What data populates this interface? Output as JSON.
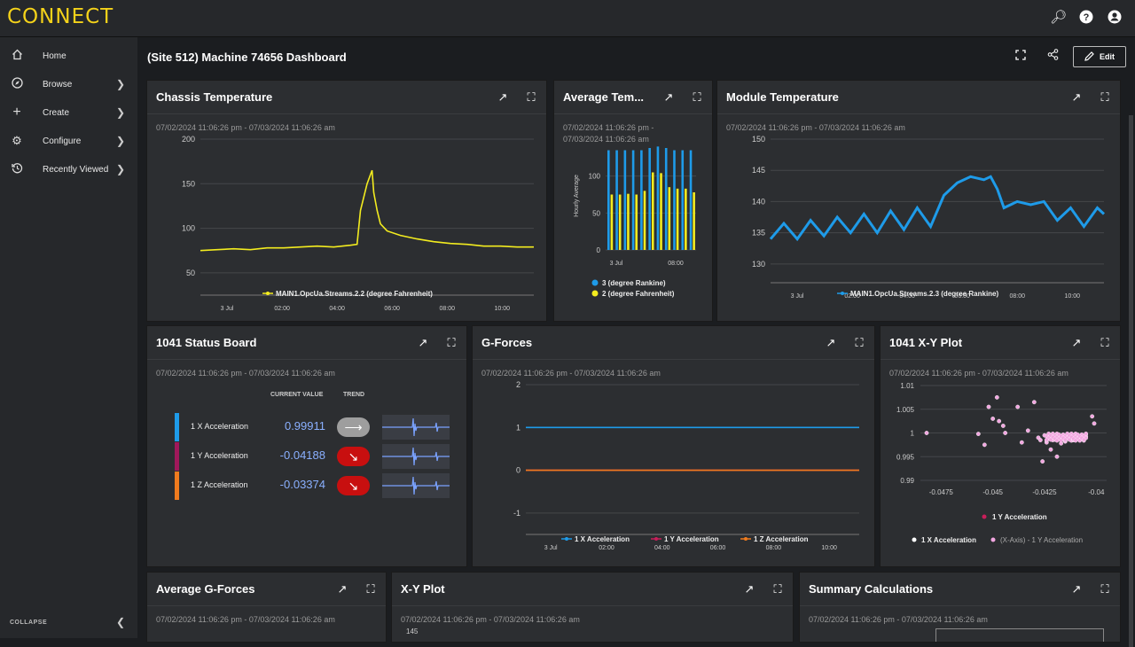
{
  "app": {
    "logo": "CONNECT"
  },
  "sidebar": {
    "items": [
      {
        "label": "Home",
        "icon": "home-icon"
      },
      {
        "label": "Browse",
        "icon": "compass-icon"
      },
      {
        "label": "Create",
        "icon": "plus-icon"
      },
      {
        "label": "Configure",
        "icon": "gear-icon"
      },
      {
        "label": "Recently Viewed",
        "icon": "history-icon"
      }
    ],
    "collapse_label": "COLLAPSE"
  },
  "header": {
    "title": "(Site 512) Machine 74656 Dashboard",
    "edit_label": "Edit"
  },
  "range": "07/02/2024 11:06:26 pm - 07/03/2024 11:06:26 am",
  "range_split": [
    "07/02/2024 11:06:26 pm -",
    "07/03/2024 11:06:26 am"
  ],
  "cards": {
    "chassis": {
      "title": "Chassis Temperature"
    },
    "avgtemp": {
      "title": "Average Tem..."
    },
    "module": {
      "title": "Module Temperature"
    },
    "status": {
      "title": "1041 Status Board",
      "col_value": "CURRENT VALUE",
      "col_trend": "TREND"
    },
    "gforces": {
      "title": "G-Forces"
    },
    "xy1041": {
      "title": "1041 X-Y Plot"
    },
    "avg_gforces": {
      "title": "Average G-Forces"
    },
    "xyplot": {
      "title": "X-Y Plot"
    },
    "summary": {
      "title": "Summary Calculations"
    }
  },
  "status_rows": [
    {
      "label": "1 X Acceleration",
      "value": "0.99911",
      "color": "#1e9be9",
      "trend": "flat",
      "trend_color": "#9e9e9e"
    },
    {
      "label": "1 Y Acceleration",
      "value": "-0.04188",
      "color": "#a0185a",
      "trend": "down",
      "trend_color": "#c80f0f"
    },
    {
      "label": "1 Z Acceleration",
      "value": "-0.03374",
      "color": "#f07b1e",
      "trend": "down",
      "trend_color": "#c80f0f"
    }
  ],
  "xyplot_partial_tick": "145",
  "chart_data": [
    {
      "id": "chassis",
      "type": "line",
      "y_ticks": [
        50,
        100,
        150,
        200
      ],
      "ylim": [
        25,
        200
      ],
      "x_ticks": [
        "3 Jul",
        "02:00",
        "04:00",
        "06:00",
        "08:00",
        "10:00"
      ],
      "series": [
        {
          "name": "MAIN1.OpcUa.Streams.2.2 (degree Fahrenheit)",
          "color": "#f3ec1f",
          "points": [
            [
              0,
              75
            ],
            [
              0.05,
              76
            ],
            [
              0.1,
              77
            ],
            [
              0.15,
              76
            ],
            [
              0.2,
              78
            ],
            [
              0.25,
              78
            ],
            [
              0.3,
              79
            ],
            [
              0.35,
              80
            ],
            [
              0.4,
              79
            ],
            [
              0.45,
              81
            ],
            [
              0.47,
              82
            ],
            [
              0.48,
              120
            ],
            [
              0.5,
              150
            ],
            [
              0.515,
              165
            ],
            [
              0.52,
              140
            ],
            [
              0.53,
              120
            ],
            [
              0.54,
              105
            ],
            [
              0.56,
              97
            ],
            [
              0.6,
              92
            ],
            [
              0.65,
              88
            ],
            [
              0.7,
              85
            ],
            [
              0.75,
              83
            ],
            [
              0.8,
              82
            ],
            [
              0.85,
              80
            ],
            [
              0.9,
              80
            ],
            [
              0.95,
              79
            ],
            [
              1,
              79
            ]
          ]
        }
      ]
    },
    {
      "id": "avgtemp",
      "type": "bar",
      "ylabel": "Hourly Average",
      "y_ticks": [
        0,
        50,
        100
      ],
      "ylim": [
        0,
        150
      ],
      "x_ticks": [
        "3 Jul",
        "08:00"
      ],
      "series": [
        {
          "name": "3 (degree Rankine)",
          "color": "#1e9be9",
          "values": [
            135,
            135,
            135,
            135,
            135,
            138,
            140,
            138,
            135,
            135,
            135
          ]
        },
        {
          "name": "2 (degree Fahrenheit)",
          "color": "#f3ec1f",
          "values": [
            75,
            75,
            76,
            75,
            80,
            105,
            104,
            85,
            83,
            83,
            78
          ]
        }
      ]
    },
    {
      "id": "module",
      "type": "line",
      "y_ticks": [
        130,
        135,
        140,
        145,
        150
      ],
      "ylim": [
        127,
        150
      ],
      "x_ticks": [
        "3 Jul",
        "02:00",
        "04:00",
        "06:00",
        "08:00",
        "10:00"
      ],
      "series": [
        {
          "name": "MAIN1.OpcUa.Streams.2.3 (degree Rankine)",
          "color": "#1e9be9",
          "points": [
            [
              0,
              134
            ],
            [
              0.04,
              136.5
            ],
            [
              0.08,
              134
            ],
            [
              0.12,
              137
            ],
            [
              0.16,
              134.5
            ],
            [
              0.2,
              137.5
            ],
            [
              0.24,
              135
            ],
            [
              0.28,
              138
            ],
            [
              0.32,
              135
            ],
            [
              0.36,
              138.5
            ],
            [
              0.4,
              135.5
            ],
            [
              0.44,
              139
            ],
            [
              0.48,
              136
            ],
            [
              0.52,
              141
            ],
            [
              0.56,
              143
            ],
            [
              0.6,
              144
            ],
            [
              0.64,
              143.5
            ],
            [
              0.66,
              144
            ],
            [
              0.68,
              142
            ],
            [
              0.7,
              139
            ],
            [
              0.74,
              140
            ],
            [
              0.78,
              139.5
            ],
            [
              0.82,
              140
            ],
            [
              0.86,
              137
            ],
            [
              0.9,
              139
            ],
            [
              0.94,
              136
            ],
            [
              0.98,
              139
            ],
            [
              1,
              138
            ]
          ]
        }
      ]
    },
    {
      "id": "gforces",
      "type": "line",
      "y_ticks": [
        -1,
        0,
        1,
        2
      ],
      "ylim": [
        -1.5,
        2
      ],
      "x_ticks": [
        "3 Jul",
        "02:00",
        "04:00",
        "06:00",
        "08:00",
        "10:00"
      ],
      "series": [
        {
          "name": "1 X Acceleration",
          "color": "#1e9be9",
          "points": [
            [
              0,
              1
            ],
            [
              1,
              1
            ]
          ]
        },
        {
          "name": "1 Y Acceleration",
          "color": "#c81e5a",
          "points": [
            [
              0,
              0
            ],
            [
              1,
              0
            ]
          ]
        },
        {
          "name": "1 Z Acceleration",
          "color": "#f07b1e",
          "points": [
            [
              0,
              0
            ],
            [
              1,
              0
            ]
          ]
        }
      ]
    },
    {
      "id": "xy1041",
      "type": "scatter",
      "x_ticks": [
        -0.0475,
        -0.045,
        -0.0425,
        -0.04
      ],
      "xlim": [
        -0.0485,
        -0.0395
      ],
      "y_ticks": [
        0.99,
        0.995,
        1,
        1.005,
        1.01
      ],
      "ylim": [
        0.99,
        1.01
      ],
      "y_tick_labels": [
        "0.99",
        "0.995",
        "1",
        "1.005",
        "1.01"
      ],
      "series": [
        {
          "name": "1 Y Acceleration",
          "color": "#c81e5a"
        },
        {
          "name": "1 X Acceleration",
          "color": "#ffffff"
        },
        {
          "name": "(X-Axis) - 1 Y Acceleration",
          "color": "#f2a6e0",
          "points": [
            [
              -0.0482,
              1.0
            ],
            [
              -0.0457,
              0.9998
            ],
            [
              -0.0454,
              0.9975
            ],
            [
              -0.0452,
              1.0055
            ],
            [
              -0.0448,
              1.0075
            ],
            [
              -0.045,
              1.003
            ],
            [
              -0.0447,
              1.0025
            ],
            [
              -0.0444,
              1.0
            ],
            [
              -0.0445,
              1.0015
            ],
            [
              -0.0438,
              1.0055
            ],
            [
              -0.0436,
              0.998
            ],
            [
              -0.0433,
              1.0005
            ],
            [
              -0.043,
              1.0065
            ],
            [
              -0.0428,
              0.999
            ],
            [
              -0.0426,
              0.994
            ],
            [
              -0.0422,
              0.9965
            ],
            [
              -0.0419,
              0.995
            ],
            [
              -0.0427,
              0.9985
            ],
            [
              -0.0424,
              0.998
            ],
            [
              -0.0421,
              0.9985
            ],
            [
              -0.0418,
              0.9988
            ],
            [
              -0.0415,
              0.9982
            ],
            [
              -0.0412,
              0.9984
            ],
            [
              -0.041,
              0.9986
            ],
            [
              -0.0408,
              0.9988
            ],
            [
              -0.0413,
              0.999
            ],
            [
              -0.0416,
              0.999
            ],
            [
              -0.042,
              0.9992
            ],
            [
              -0.0423,
              0.9988
            ],
            [
              -0.0409,
              0.9995
            ],
            [
              -0.0411,
              0.9985
            ],
            [
              -0.0406,
              0.9988
            ],
            [
              -0.0417,
              0.9978
            ],
            [
              -0.0402,
              1.0035
            ],
            [
              -0.0401,
              1.002
            ],
            [
              -0.0425,
              0.9995
            ],
            [
              -0.0414,
              0.9995
            ],
            [
              -0.0405,
              0.9992
            ]
          ]
        }
      ]
    }
  ]
}
